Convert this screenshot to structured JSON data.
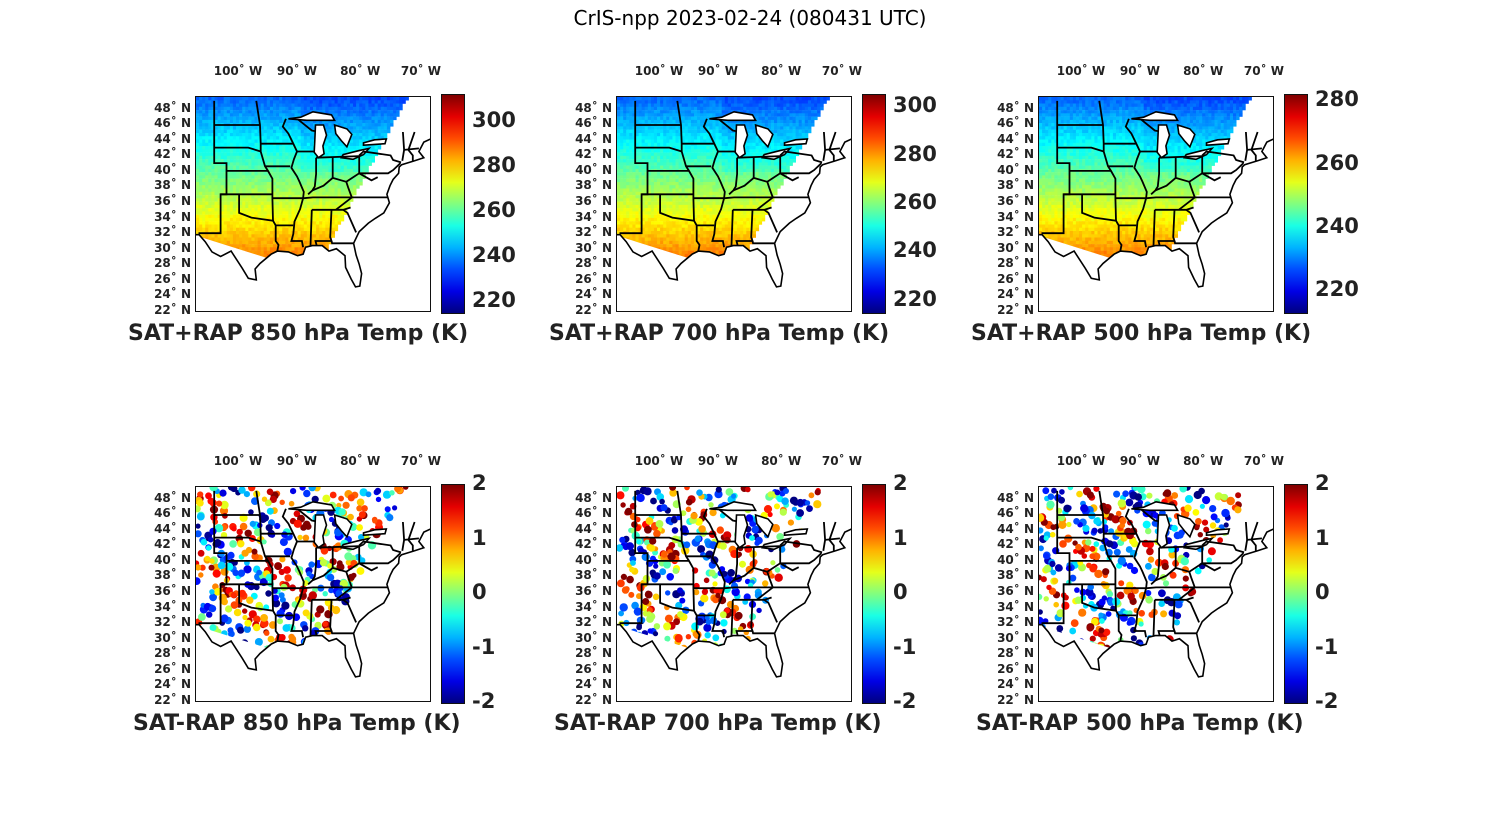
{
  "figure": {
    "title": "CrIS-npp 2023-02-24 (080431 UTC)"
  },
  "lon_ticks": [
    "100˚ W",
    "90˚ W",
    "80˚ W",
    "70˚ W"
  ],
  "lat_ticks": [
    "48˚ N",
    "46˚ N",
    "44˚ N",
    "42˚ N",
    "40˚ N",
    "38˚ N",
    "36˚ N",
    "34˚ N",
    "32˚ N",
    "30˚ N",
    "28˚ N",
    "26˚ N",
    "24˚ N",
    "22˚ N"
  ],
  "colormap": "jet",
  "panels": [
    {
      "title": "SAT+RAP 850 hPa Temp (K)",
      "kind": "field",
      "clim": [
        215,
        312
      ],
      "ticks": [
        "300",
        "280",
        "260",
        "240",
        "220"
      ]
    },
    {
      "title": "SAT+RAP 700 hPa Temp (K)",
      "kind": "field",
      "clim": [
        215,
        305
      ],
      "ticks": [
        "300",
        "280",
        "260",
        "240",
        "220"
      ]
    },
    {
      "title": "SAT+RAP 500 hPa Temp (K)",
      "kind": "field",
      "clim": [
        213,
        282
      ],
      "ticks": [
        "280",
        "260",
        "240",
        "220"
      ]
    },
    {
      "title": "SAT-RAP 850 hPa Temp (K)",
      "kind": "difference",
      "clim": [
        -2,
        2
      ],
      "ticks": [
        "2",
        "1",
        "0",
        "-1",
        "-2"
      ]
    },
    {
      "title": "SAT-RAP 700 hPa Temp (K)",
      "kind": "difference",
      "clim": [
        -2,
        2
      ],
      "ticks": [
        "2",
        "1",
        "0",
        "-1",
        "-2"
      ]
    },
    {
      "title": "SAT-RAP 500 hPa Temp (K)",
      "kind": "difference",
      "clim": [
        -2,
        2
      ],
      "ticks": [
        "2",
        "1",
        "0",
        "-1",
        "-2"
      ]
    }
  ]
}
